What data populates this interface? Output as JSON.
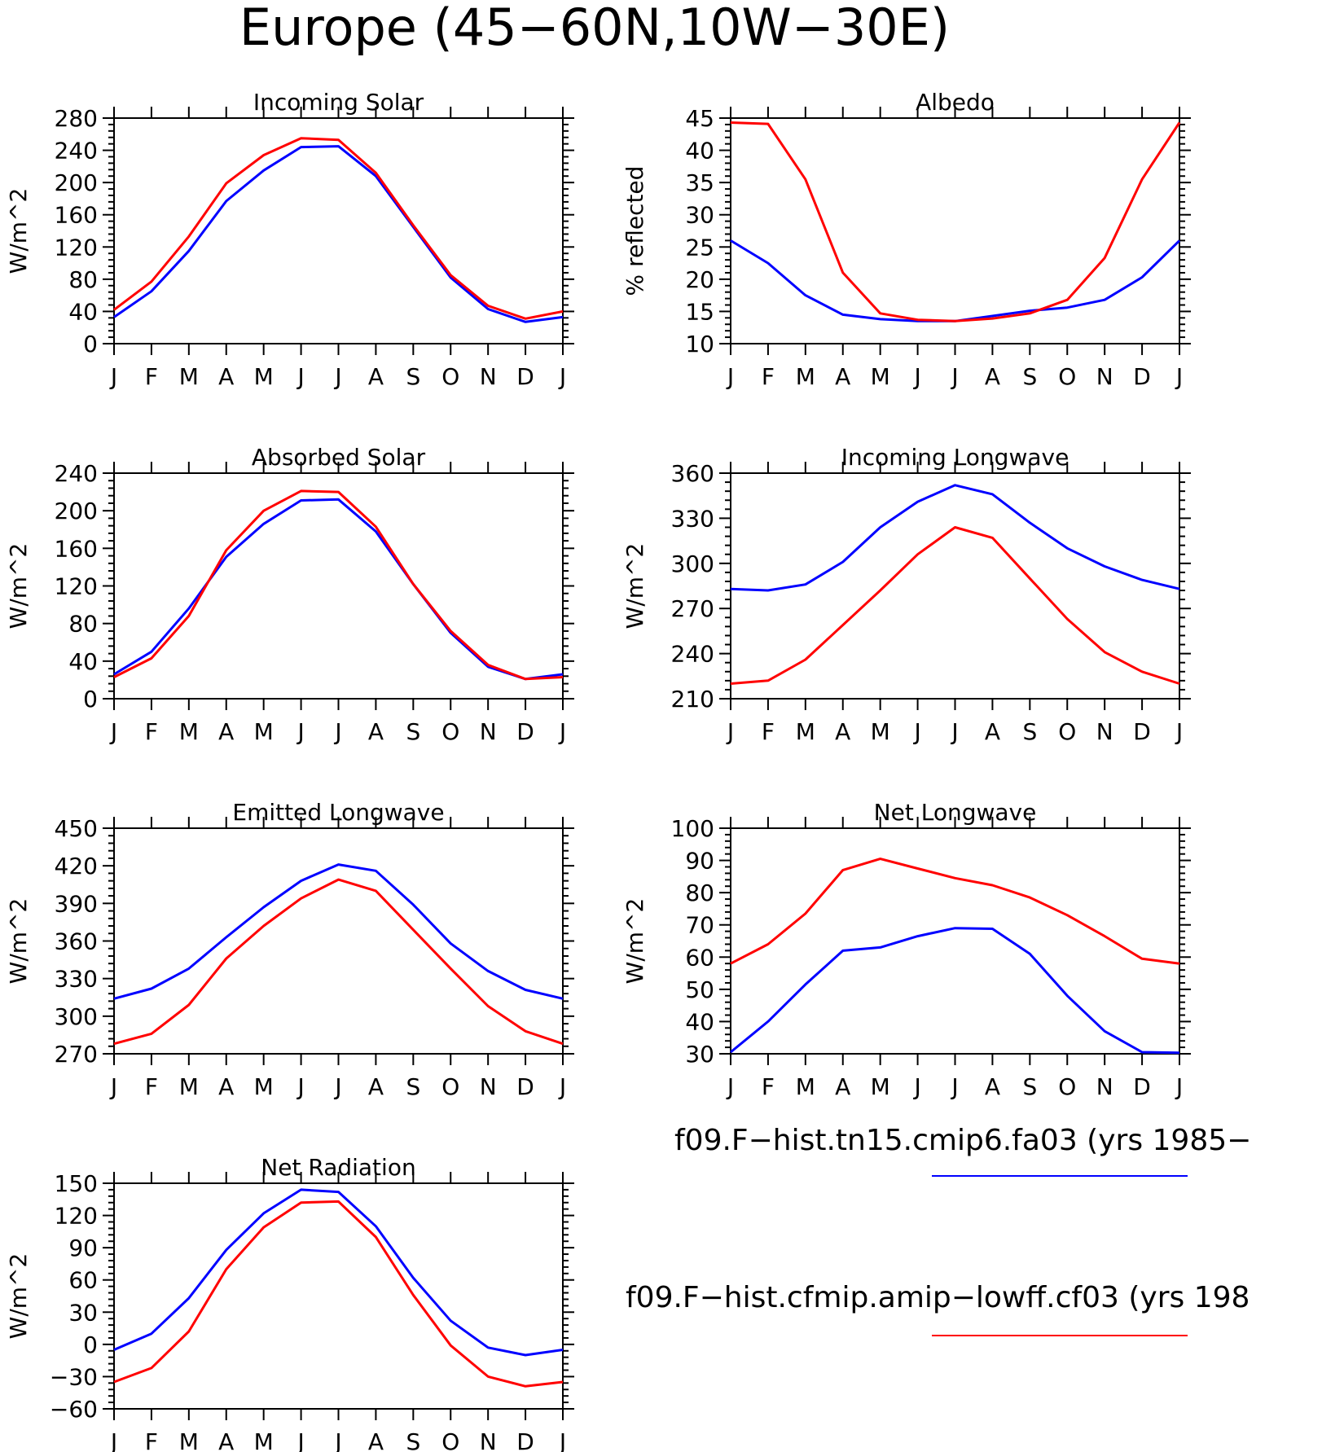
{
  "figure": {
    "title": "Europe (45−60N,10W−30E)"
  },
  "legend": {
    "entries": [
      {
        "name": "f09.F−hist.tn15.cmip6.fa03 (yrs 1985−",
        "color": "#0000ff"
      },
      {
        "name": "f09.F−hist.cfmip.amip−lowff.cf03 (yrs 198",
        "color": "#ff0000"
      }
    ]
  },
  "chart_data": [
    {
      "type": "line",
      "title": "Incoming Solar",
      "ylabel": "W/m^2",
      "ylim": [
        0,
        280
      ],
      "yticks": [
        0,
        40,
        80,
        120,
        160,
        200,
        240,
        280
      ],
      "categories": [
        "J",
        "F",
        "M",
        "A",
        "M",
        "J",
        "J",
        "A",
        "S",
        "O",
        "N",
        "D",
        "J"
      ],
      "series": [
        {
          "color": "#0000ff",
          "values": [
            33,
            65,
            115,
            177,
            215,
            244,
            245,
            208,
            145,
            82,
            43,
            27,
            33
          ]
        },
        {
          "color": "#ff0000",
          "values": [
            42,
            77,
            133,
            199,
            234,
            255,
            253,
            212,
            147,
            85,
            47,
            31,
            40
          ]
        }
      ]
    },
    {
      "type": "line",
      "title": "Albedo",
      "ylabel": "% reflected",
      "ylim": [
        10,
        45
      ],
      "yticks": [
        10,
        15,
        20,
        25,
        30,
        35,
        40,
        45
      ],
      "categories": [
        "J",
        "F",
        "M",
        "A",
        "M",
        "J",
        "J",
        "A",
        "S",
        "O",
        "N",
        "D",
        "J"
      ],
      "series": [
        {
          "color": "#0000ff",
          "values": [
            26.0,
            22.5,
            17.5,
            14.5,
            13.8,
            13.5,
            13.5,
            14.3,
            15.1,
            15.6,
            16.8,
            20.3,
            26.0
          ]
        },
        {
          "color": "#ff0000",
          "values": [
            44.3,
            44.1,
            35.5,
            21.0,
            14.7,
            13.7,
            13.5,
            13.9,
            14.7,
            16.8,
            23.3,
            35.5,
            44.3
          ]
        }
      ]
    },
    {
      "type": "line",
      "title": "Absorbed Solar",
      "ylabel": "W/m^2",
      "ylim": [
        0,
        240
      ],
      "yticks": [
        0,
        40,
        80,
        120,
        160,
        200,
        240
      ],
      "categories": [
        "J",
        "F",
        "M",
        "A",
        "M",
        "J",
        "J",
        "A",
        "S",
        "O",
        "N",
        "D",
        "J"
      ],
      "series": [
        {
          "color": "#0000ff",
          "values": [
            26,
            50,
            96,
            151,
            186,
            211,
            212,
            178,
            122,
            70,
            34,
            21,
            26
          ]
        },
        {
          "color": "#ff0000",
          "values": [
            23,
            43,
            88,
            158,
            200,
            221,
            220,
            183,
            122,
            72,
            36,
            21,
            23
          ]
        }
      ]
    },
    {
      "type": "line",
      "title": "Incoming Longwave",
      "ylabel": "W/m^2",
      "ylim": [
        210,
        360
      ],
      "yticks": [
        210,
        240,
        270,
        300,
        330,
        360
      ],
      "categories": [
        "J",
        "F",
        "M",
        "A",
        "M",
        "J",
        "J",
        "A",
        "S",
        "O",
        "N",
        "D",
        "J"
      ],
      "series": [
        {
          "color": "#0000ff",
          "values": [
            283,
            282,
            286,
            301,
            324,
            341,
            352,
            346,
            327,
            310,
            298,
            289,
            283
          ]
        },
        {
          "color": "#ff0000",
          "values": [
            220,
            222,
            236,
            259,
            282,
            306,
            324,
            317,
            290,
            263,
            241,
            228,
            220
          ]
        }
      ]
    },
    {
      "type": "line",
      "title": "Emitted Longwave",
      "ylabel": "W/m^2",
      "ylim": [
        270,
        450
      ],
      "yticks": [
        270,
        300,
        330,
        360,
        390,
        420,
        450
      ],
      "categories": [
        "J",
        "F",
        "M",
        "A",
        "M",
        "J",
        "J",
        "A",
        "S",
        "O",
        "N",
        "D",
        "J"
      ],
      "series": [
        {
          "color": "#0000ff",
          "values": [
            314,
            322,
            338,
            363,
            387,
            408,
            421,
            416,
            389,
            358,
            336,
            321,
            314
          ]
        },
        {
          "color": "#ff0000",
          "values": [
            278,
            286,
            309,
            346,
            372,
            394,
            409,
            400,
            369,
            338,
            308,
            288,
            278
          ]
        }
      ]
    },
    {
      "type": "line",
      "title": "Net Longwave",
      "ylabel": "W/m^2",
      "ylim": [
        30,
        100
      ],
      "yticks": [
        30,
        40,
        50,
        60,
        70,
        80,
        90,
        100
      ],
      "categories": [
        "J",
        "F",
        "M",
        "A",
        "M",
        "J",
        "J",
        "A",
        "S",
        "O",
        "N",
        "D",
        "J"
      ],
      "series": [
        {
          "color": "#0000ff",
          "values": [
            30.5,
            40,
            51.5,
            62,
            63,
            66.5,
            69,
            68.8,
            61,
            48,
            37,
            30.5,
            30.3
          ]
        },
        {
          "color": "#ff0000",
          "values": [
            58,
            64,
            73.5,
            87,
            90.5,
            87.5,
            84.5,
            82.3,
            78.5,
            73,
            66.5,
            59.5,
            58
          ]
        }
      ]
    },
    {
      "type": "line",
      "title": "Net Radiation",
      "ylabel": "W/m^2",
      "ylim": [
        -60,
        150
      ],
      "yticks": [
        -60,
        -30,
        0,
        30,
        60,
        90,
        120,
        150
      ],
      "categories": [
        "J",
        "F",
        "M",
        "A",
        "M",
        "J",
        "J",
        "A",
        "S",
        "O",
        "N",
        "D",
        "J"
      ],
      "series": [
        {
          "color": "#0000ff",
          "values": [
            -5,
            10,
            43,
            88,
            122,
            144,
            142,
            110,
            62,
            22,
            -3,
            -10,
            -5
          ]
        },
        {
          "color": "#ff0000",
          "values": [
            -35,
            -22,
            12,
            70,
            109,
            132,
            133,
            100,
            46,
            -1,
            -30,
            -39,
            -35
          ]
        }
      ]
    }
  ]
}
